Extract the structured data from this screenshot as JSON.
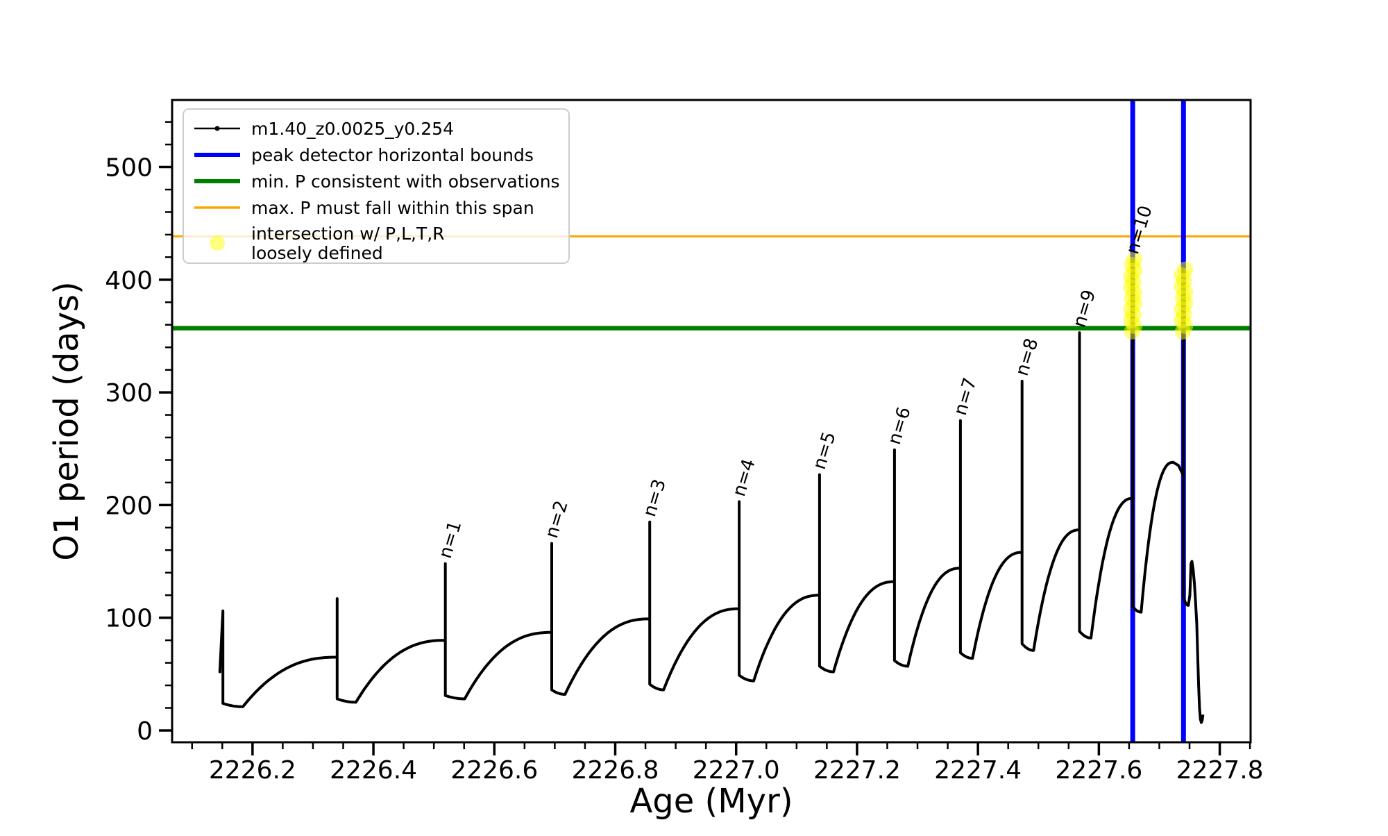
{
  "chart_data": {
    "type": "line",
    "title": "",
    "xlabel": "Age (Myr)",
    "ylabel": "O1 period (days)",
    "xlim": [
      2226.067,
      2227.851
    ],
    "ylim": [
      -10.5,
      559.5
    ],
    "grid": false,
    "legend_position": "upper left",
    "x_major_ticks": [
      {
        "v": 2226.2,
        "label": "2226.2"
      },
      {
        "v": 2226.4,
        "label": "2226.4"
      },
      {
        "v": 2226.6,
        "label": "2226.6"
      },
      {
        "v": 2226.8,
        "label": "2226.8"
      },
      {
        "v": 2227.0,
        "label": "2227.0"
      },
      {
        "v": 2227.2,
        "label": "2227.2"
      },
      {
        "v": 2227.4,
        "label": "2227.4"
      },
      {
        "v": 2227.6,
        "label": "2227.6"
      },
      {
        "v": 2227.8,
        "label": "2227.8"
      }
    ],
    "x_minor_step": 0.05,
    "y_major_ticks": [
      {
        "v": 0,
        "label": "0"
      },
      {
        "v": 100,
        "label": "100"
      },
      {
        "v": 200,
        "label": "200"
      },
      {
        "v": 300,
        "label": "300"
      },
      {
        "v": 400,
        "label": "400"
      },
      {
        "v": 500,
        "label": "500"
      }
    ],
    "y_minor_step": 20,
    "colors": {
      "series": "#000000",
      "peak_bounds": "#0000ff",
      "min_P": "#008000",
      "max_P": "#ffa500",
      "intersection": "rgba(255,255,0,0.5)"
    },
    "legend": [
      {
        "label": "m1.40_z0.0025_y0.254",
        "type": "line-dot",
        "color": "#000000"
      },
      {
        "label": "peak detector horizontal bounds",
        "type": "line",
        "color": "#0000ff"
      },
      {
        "label": "min. P consistent with observations",
        "type": "line",
        "color": "#008000"
      },
      {
        "label": "max. P must fall within this span",
        "type": "line",
        "color": "#ffa500"
      },
      {
        "label_line1": "intersection w/ P,L,T,R",
        "label_line2": "loosely defined",
        "type": "marker",
        "color": "rgba(255,255,0,0.5)"
      }
    ],
    "reference_lines": {
      "min_P_days": 357,
      "max_P_days": 438.5
    },
    "peak_bounds_x": [
      2227.656,
      2227.74
    ],
    "intersection_clusters": [
      {
        "x": 2227.656,
        "v_min": 354,
        "v_max": 418,
        "count": 14
      },
      {
        "x": 2227.74,
        "v_min": 354,
        "v_max": 409,
        "count": 12
      }
    ],
    "series_model": {
      "note": "sawtooth relaxation-oscillation cycles; each cycle = vertical spike then dip then concave rise",
      "start_points": [
        [
          2226.146,
          52
        ]
      ],
      "cycles": [
        {
          "x": 2226.151,
          "peak": 106,
          "label": null,
          "sb": 24,
          "dip_x": 2226.184,
          "dip_v": 21,
          "rise_x": 2226.34,
          "rise_v": 65
        },
        {
          "x": 2226.34,
          "peak": 117,
          "label": null,
          "sb": 28,
          "dip_x": 2226.371,
          "dip_v": 25,
          "rise_x": 2226.519,
          "rise_v": 80
        },
        {
          "x": 2226.519,
          "peak": 148,
          "label": "n=1",
          "sb": 31,
          "dip_x": 2226.551,
          "dip_v": 28,
          "rise_x": 2226.695,
          "rise_v": 87
        },
        {
          "x": 2226.695,
          "peak": 166,
          "label": "n=2",
          "sb": 36,
          "dip_x": 2226.717,
          "dip_v": 32,
          "rise_x": 2226.857,
          "rise_v": 99
        },
        {
          "x": 2226.857,
          "peak": 185,
          "label": "n=3",
          "sb": 41,
          "dip_x": 2226.88,
          "dip_v": 36,
          "rise_x": 2227.005,
          "rise_v": 108
        },
        {
          "x": 2227.005,
          "peak": 203,
          "label": "n=4",
          "sb": 49,
          "dip_x": 2227.029,
          "dip_v": 44,
          "rise_x": 2227.138,
          "rise_v": 120
        },
        {
          "x": 2227.138,
          "peak": 227,
          "label": "n=5",
          "sb": 57,
          "dip_x": 2227.161,
          "dip_v": 52,
          "rise_x": 2227.262,
          "rise_v": 132
        },
        {
          "x": 2227.262,
          "peak": 249,
          "label": "n=6",
          "sb": 62,
          "dip_x": 2227.284,
          "dip_v": 57,
          "rise_x": 2227.371,
          "rise_v": 144
        },
        {
          "x": 2227.371,
          "peak": 275,
          "label": "n=7",
          "sb": 69,
          "dip_x": 2227.391,
          "dip_v": 64,
          "rise_x": 2227.473,
          "rise_v": 158
        },
        {
          "x": 2227.473,
          "peak": 310,
          "label": "n=8",
          "sb": 77,
          "dip_x": 2227.492,
          "dip_v": 71,
          "rise_x": 2227.568,
          "rise_v": 178
        },
        {
          "x": 2227.568,
          "peak": 353,
          "label": "n=9",
          "sb": 88,
          "dip_x": 2227.587,
          "dip_v": 82,
          "rise_x": 2227.656,
          "rise_v": 206
        },
        {
          "x": 2227.656,
          "peak": 418,
          "label": "n=10",
          "sb": 110,
          "dip_x": 2227.67,
          "dip_v": 105,
          "rise_x": 2227.723,
          "rise_v": 238,
          "post": [
            [
              2227.732,
              235
            ],
            [
              2227.74,
              226
            ]
          ]
        },
        {
          "x": 2227.74,
          "peak": 410,
          "label": null,
          "sb": 118,
          "dip_x": 2227.748,
          "dip_v": 111,
          "rise_x": null,
          "rise_v": null
        }
      ],
      "tail": [
        [
          2227.7505,
          120
        ],
        [
          2227.7525,
          148
        ],
        [
          2227.754,
          150
        ],
        [
          2227.756,
          143
        ],
        [
          2227.758,
          131
        ],
        [
          2227.76,
          114
        ],
        [
          2227.762,
          94
        ],
        [
          2227.7635,
          66
        ],
        [
          2227.765,
          40
        ],
        [
          2227.7665,
          20
        ],
        [
          2227.768,
          10
        ],
        [
          2227.7695,
          7
        ],
        [
          2227.771,
          9
        ],
        [
          2227.772,
          13
        ]
      ]
    }
  }
}
